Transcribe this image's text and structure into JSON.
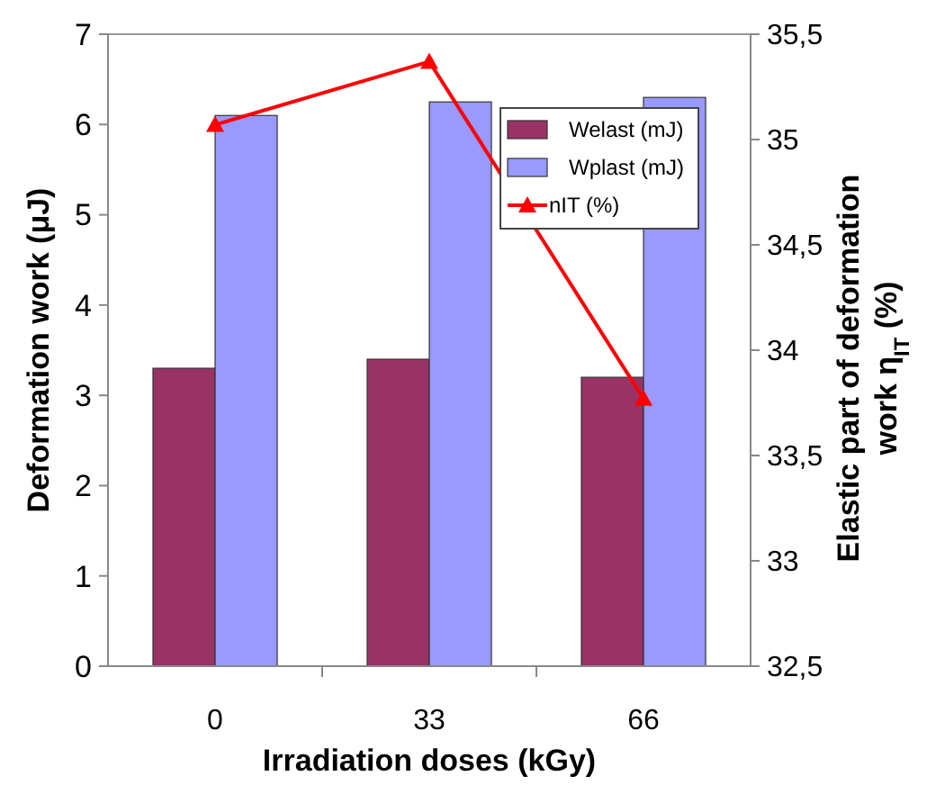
{
  "chart_data": {
    "type": "bar",
    "xlabel": "Irradiation doses (kGy)",
    "ylabel": "Deformation work (μJ)",
    "y2label": "Elastic part of deformation work η$_{IT}$ (%)",
    "categories": [
      "0",
      "33",
      "66"
    ],
    "series": [
      {
        "name": "Welast (mJ)",
        "color": "#993366",
        "values": [
          3.3,
          3.4,
          3.2
        ]
      },
      {
        "name": "Wplast (mJ)",
        "color": "#9999ff",
        "values": [
          6.1,
          6.25,
          6.3
        ]
      },
      {
        "name": "nIT (%)",
        "type": "line",
        "axis": "y2",
        "color": "#ff0000",
        "marker": "triangle",
        "values": [
          35.07,
          35.37,
          33.77
        ]
      }
    ],
    "ylim": [
      0,
      7
    ],
    "yticks": [
      0,
      1,
      2,
      3,
      4,
      5,
      6,
      7
    ],
    "y2lim": [
      32.5,
      35.5
    ],
    "y2ticks": [
      {
        "value": 32.5,
        "label": "32,5"
      },
      33,
      {
        "value": 33.5,
        "label": "33,5"
      },
      34,
      {
        "value": 34.5,
        "label": "34,5"
      },
      35,
      {
        "value": 35.5,
        "label": "35,5"
      }
    ],
    "legend": "top right"
  }
}
